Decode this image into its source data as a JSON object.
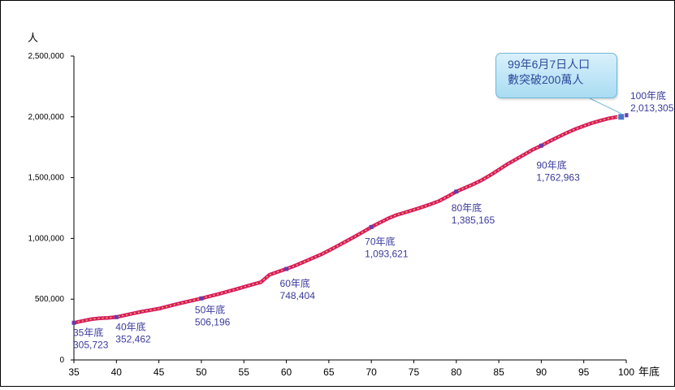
{
  "chart_data": {
    "type": "line",
    "ylabel": "人",
    "xlabel": "年底",
    "xlim": [
      35,
      100
    ],
    "ylim": [
      0,
      2500000
    ],
    "y_ticks": [
      "0",
      "500,000",
      "1,000,000",
      "1,500,000",
      "2,000,000",
      "2,500,000"
    ],
    "x_ticks": [
      "35",
      "40",
      "45",
      "50",
      "55",
      "60",
      "65",
      "70",
      "75",
      "80",
      "85",
      "90",
      "95",
      "100"
    ],
    "grid": false,
    "line_color": "#d81b60",
    "dot_color": "#e8c86a",
    "marker_color": "#6a3aa8",
    "series": [
      {
        "x": [
          35,
          36,
          37,
          38,
          39,
          40,
          41,
          42,
          43,
          44,
          45,
          46,
          47,
          48,
          49,
          50,
          51,
          52,
          53,
          54,
          55,
          56,
          57,
          58,
          59,
          60,
          61,
          62,
          63,
          64,
          65,
          66,
          67,
          68,
          69,
          70,
          71,
          72,
          73,
          74,
          75,
          76,
          77,
          78,
          79,
          80,
          81,
          82,
          83,
          84,
          85,
          86,
          87,
          88,
          89,
          90,
          91,
          92,
          93,
          94,
          95,
          96,
          97,
          98,
          99,
          100
        ],
        "values": [
          305723,
          320000,
          335000,
          342000,
          346000,
          352462,
          368000,
          383000,
          398000,
          410000,
          422000,
          440000,
          457000,
          474000,
          490000,
          506196,
          524000,
          542000,
          561000,
          580000,
          600000,
          620000,
          640000,
          700000,
          725000,
          748404,
          775000,
          805000,
          835000,
          865000,
          900000,
          937000,
          975000,
          1013000,
          1052000,
          1093621,
          1130000,
          1165000,
          1193000,
          1214000,
          1235000,
          1258000,
          1282000,
          1308000,
          1345000,
          1385165,
          1415000,
          1446000,
          1480000,
          1520000,
          1565000,
          1610000,
          1650000,
          1690000,
          1730000,
          1762963,
          1800000,
          1835000,
          1868000,
          1899000,
          1925000,
          1950000,
          1970000,
          1988000,
          2000000,
          2013305
        ]
      }
    ],
    "annotations": [
      {
        "x": 35,
        "label": "35年底",
        "value_text": "305,723"
      },
      {
        "x": 40,
        "label": "40年底",
        "value_text": "352,462"
      },
      {
        "x": 50,
        "label": "50年底",
        "value_text": "506,196"
      },
      {
        "x": 60,
        "label": "60年底",
        "value_text": "748,404"
      },
      {
        "x": 70,
        "label": "70年底",
        "value_text": "1,093,621"
      },
      {
        "x": 80,
        "label": "80年底",
        "value_text": "1,385,165"
      },
      {
        "x": 90,
        "label": "90年底",
        "value_text": "1,762,963"
      },
      {
        "x": 100,
        "label": "100年底",
        "value_text": "2,013,305"
      }
    ],
    "callout": {
      "line1": "99年6月7日人口",
      "line2": "數突破200萬人",
      "x": 99.4,
      "y": 2000000
    }
  }
}
